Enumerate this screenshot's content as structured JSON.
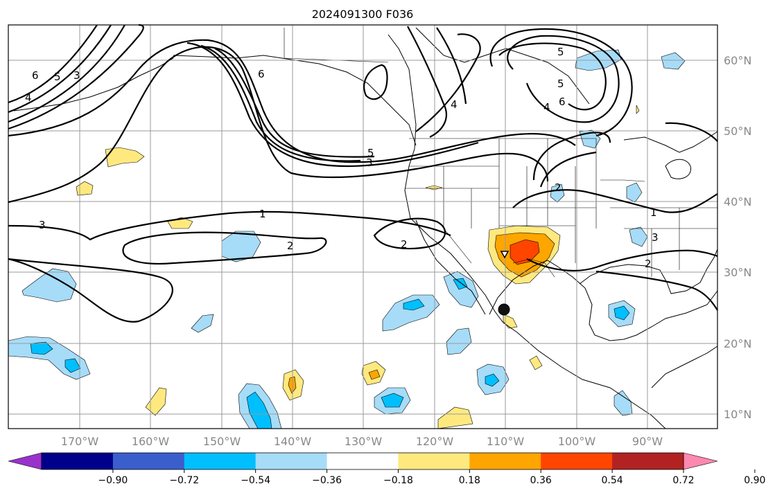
{
  "map": {
    "title": "2024091300 F036",
    "lat_labels": [
      "60°N",
      "50°N",
      "40°N",
      "30°N",
      "20°N",
      "10°N"
    ],
    "lon_labels": [
      "170°W",
      "160°W",
      "150°W",
      "140°W",
      "130°W",
      "120°W",
      "110°W",
      "100°W",
      "90°W"
    ],
    "contour_labels": [
      "6",
      "5",
      "4",
      "3",
      "6",
      "5",
      "4",
      "5",
      "4",
      "6",
      "5",
      "3",
      "2",
      "1",
      "2",
      "2",
      "3",
      "1",
      "2",
      "3"
    ],
    "colorbar": {
      "ticks": [
        "−0.90",
        "−0.72",
        "−0.54",
        "−0.36",
        "−0.18",
        "0.18",
        "0.36",
        "0.54",
        "0.72",
        "0.90"
      ],
      "colors": [
        "#9932cc",
        "#00008b",
        "#3a5fcd",
        "#00bfff",
        "#a6dcf8",
        "#ffffff",
        "#ffe97f",
        "#ffa500",
        "#ff4500",
        "#b22222",
        "#ff88b0"
      ]
    }
  }
}
